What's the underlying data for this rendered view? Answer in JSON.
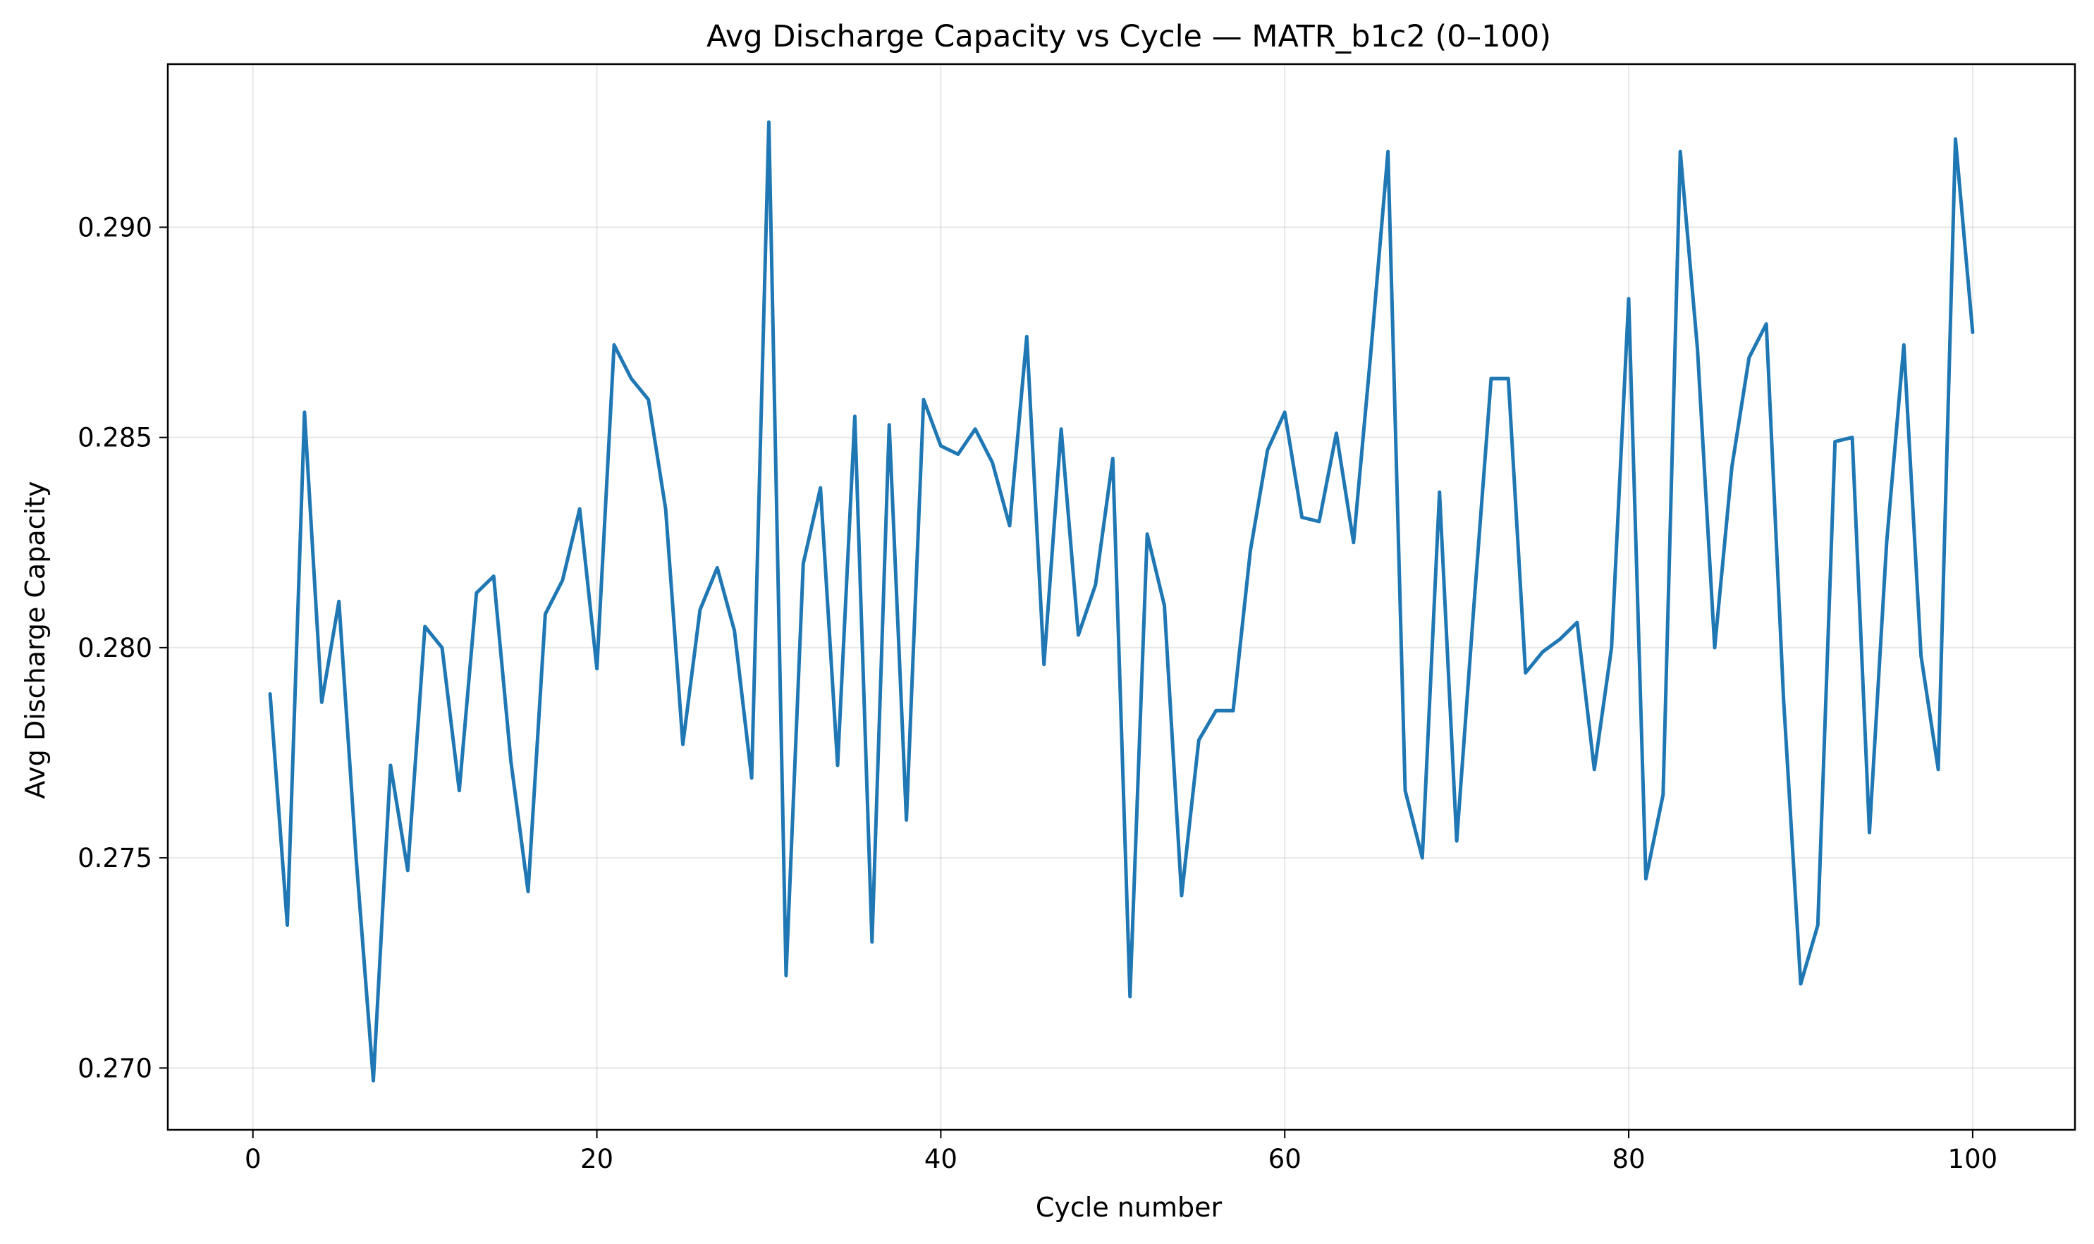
{
  "chart_data": {
    "type": "line",
    "title": "Avg Discharge Capacity vs Cycle — MATR_b1c2 (0–100)",
    "xlabel": "Cycle number",
    "ylabel": "Avg Discharge Capacity",
    "xlim": [
      -4.95,
      105.95
    ],
    "ylim": [
      0.26853,
      0.29388
    ],
    "xticks": [
      0,
      20,
      40,
      60,
      80,
      100
    ],
    "xtick_labels": [
      "0",
      "20",
      "40",
      "60",
      "80",
      "100"
    ],
    "yticks": [
      0.27,
      0.275,
      0.28,
      0.285,
      0.29
    ],
    "ytick_labels": [
      "0.270",
      "0.275",
      "0.280",
      "0.285",
      "0.290"
    ],
    "grid": true,
    "series": [
      {
        "color": "#1f77b4",
        "x": [
          1,
          2,
          3,
          4,
          5,
          6,
          7,
          8,
          9,
          10,
          11,
          12,
          13,
          14,
          15,
          16,
          17,
          18,
          19,
          20,
          21,
          22,
          23,
          24,
          25,
          26,
          27,
          28,
          29,
          30,
          31,
          32,
          33,
          34,
          35,
          36,
          37,
          38,
          39,
          40,
          41,
          42,
          43,
          44,
          45,
          46,
          47,
          48,
          49,
          50,
          51,
          52,
          53,
          54,
          55,
          56,
          57,
          58,
          59,
          60,
          61,
          62,
          63,
          64,
          65,
          66,
          67,
          68,
          69,
          70,
          71,
          72,
          73,
          74,
          75,
          76,
          77,
          78,
          79,
          80,
          81,
          82,
          83,
          84,
          85,
          86,
          87,
          88,
          89,
          90,
          91,
          92,
          93,
          94,
          95,
          96,
          97,
          98,
          99,
          100
        ],
        "values": [
          0.2789,
          0.2734,
          0.2856,
          0.2787,
          0.2811,
          0.275,
          0.2697,
          0.2772,
          0.2747,
          0.2805,
          0.28,
          0.2766,
          0.2813,
          0.2817,
          0.2773,
          0.2742,
          0.2808,
          0.2816,
          0.2833,
          0.2795,
          0.2872,
          0.2864,
          0.2859,
          0.2833,
          0.2777,
          0.2809,
          0.2819,
          0.2804,
          0.2769,
          0.2925,
          0.2722,
          0.282,
          0.2838,
          0.2772,
          0.2855,
          0.273,
          0.2853,
          0.2759,
          0.2859,
          0.2848,
          0.2846,
          0.2852,
          0.2844,
          0.2829,
          0.2874,
          0.2796,
          0.2852,
          0.2803,
          0.2815,
          0.2845,
          0.2717,
          0.2827,
          0.281,
          0.2741,
          0.2778,
          0.2785,
          0.2785,
          0.2823,
          0.2847,
          0.2856,
          0.2831,
          0.283,
          0.2851,
          0.2825,
          0.287,
          0.2918,
          0.2766,
          0.275,
          0.2837,
          0.2754,
          0.281,
          0.2864,
          0.2864,
          0.2794,
          0.2799,
          0.2802,
          0.2806,
          0.2771,
          0.28,
          0.2883,
          0.2745,
          0.2765,
          0.2918,
          0.2871,
          0.28,
          0.2843,
          0.2869,
          0.2877,
          0.2788,
          0.272,
          0.2734,
          0.2849,
          0.285,
          0.2756,
          0.2825,
          0.2872,
          0.2798,
          0.2771,
          0.2921,
          0.2875
        ]
      }
    ]
  }
}
